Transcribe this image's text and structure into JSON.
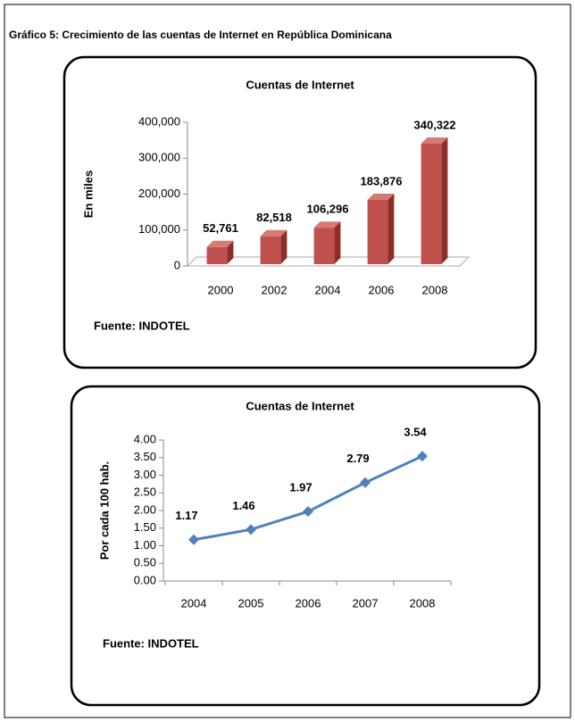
{
  "title": "Gráfico 5: Crecimiento de las cuentas de Internet en República Dominicana",
  "chart_data": [
    {
      "type": "bar",
      "title": "Cuentas de Internet",
      "y_label": "En miles",
      "source": "Fuente: INDOTEL",
      "categories": [
        "2000",
        "2002",
        "2004",
        "2006",
        "2008"
      ],
      "values": [
        52761,
        82518,
        106296,
        183876,
        340322
      ],
      "value_labels": [
        "52,761",
        "82,518",
        "106,296",
        "183,876",
        "340,322"
      ],
      "color": "#c0504d",
      "ylim": [
        0,
        400000
      ],
      "yticks": [
        0,
        {
          "value": 100000,
          "label": "100,000"
        },
        {
          "value": 200000,
          "label": "200,000"
        },
        {
          "value": 300000,
          "label": "300,000"
        },
        {
          "value": 400000,
          "label": "400,000"
        }
      ]
    },
    {
      "type": "line",
      "title": "Cuentas de Internet",
      "y_label": "Por cada 100 hab.",
      "source": "Fuente: INDOTEL",
      "categories": [
        "2004",
        "2005",
        "2006",
        "2007",
        "2008"
      ],
      "values": [
        1.17,
        1.46,
        1.97,
        2.79,
        3.54
      ],
      "color": "#4f81bd",
      "ylim": [
        0,
        4
      ],
      "yticks": [
        {
          "value": 0,
          "label": "0.00"
        },
        {
          "value": 0.5,
          "label": "0.50"
        },
        {
          "value": 1,
          "label": "1.00"
        },
        {
          "value": 1.5,
          "label": "1.50"
        },
        {
          "value": 2,
          "label": "2.00"
        },
        {
          "value": 2.5,
          "label": "2.50"
        },
        {
          "value": 3,
          "label": "3.00"
        },
        {
          "value": 3.5,
          "label": "3.50"
        },
        {
          "value": 4,
          "label": "4.00"
        }
      ]
    }
  ]
}
